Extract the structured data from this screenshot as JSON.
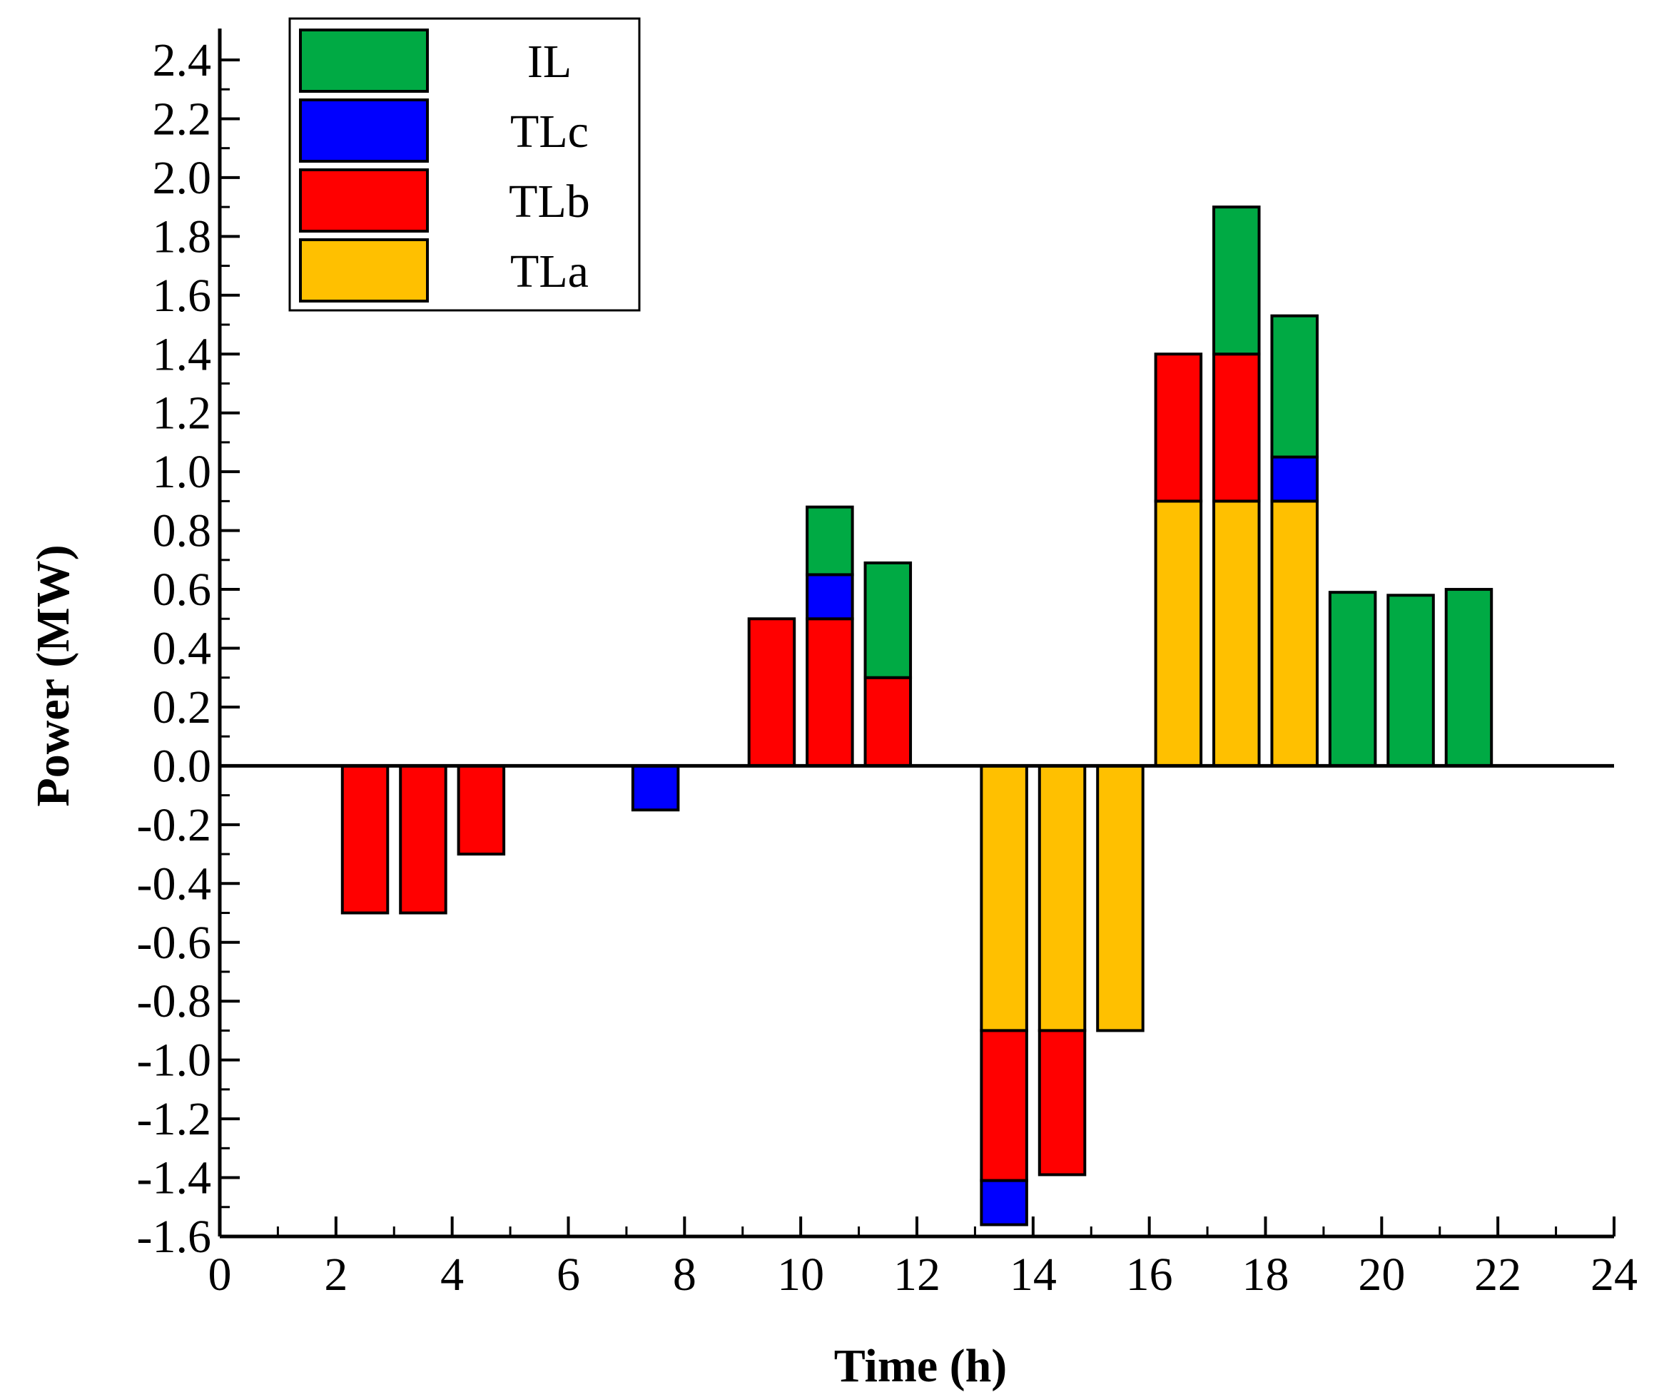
{
  "chart_data": {
    "type": "bar",
    "stacked": true,
    "title": "",
    "xlabel": "Time (h)",
    "ylabel": "Power (MW)",
    "xlim": [
      0,
      24
    ],
    "ylim": [
      -1.6,
      2.5
    ],
    "xticks": [
      0,
      2,
      4,
      6,
      8,
      10,
      12,
      14,
      16,
      18,
      20,
      22,
      24
    ],
    "yticks": [
      2.4,
      2.2,
      2.0,
      1.8,
      1.6,
      1.4,
      1.2,
      1.0,
      0.8,
      0.6,
      0.4,
      0.2,
      0.0,
      -0.2,
      -0.4,
      -0.6,
      -0.8,
      -1.0,
      -1.2,
      -1.4,
      -1.6
    ],
    "grid": false,
    "legend_position": "top-left",
    "legend_order": [
      "IL",
      "TLc",
      "TLb",
      "TLa"
    ],
    "stack_order": [
      "TLa",
      "TLb",
      "TLc",
      "IL"
    ],
    "colors": {
      "IL": "#00AA44",
      "TLc": "#0000FF",
      "TLb": "#FF0000",
      "TLa": "#FFC000"
    },
    "x": [
      2.5,
      3.5,
      4.5,
      7.5,
      9.5,
      10.5,
      11.5,
      13.5,
      14.5,
      15.5,
      16.5,
      17.5,
      18.5,
      19.5,
      20.5,
      21.5
    ],
    "series": [
      {
        "name": "TLa",
        "values": [
          0,
          0,
          0,
          0,
          0,
          0,
          0,
          -0.9,
          -0.9,
          -0.9,
          0.9,
          0.9,
          0.9,
          0,
          0,
          0
        ]
      },
      {
        "name": "TLb",
        "values": [
          -0.5,
          -0.5,
          -0.3,
          0,
          0.5,
          0.5,
          0.3,
          -0.51,
          -0.49,
          0,
          0.5,
          0.5,
          0,
          0,
          0,
          0
        ]
      },
      {
        "name": "TLc",
        "values": [
          0,
          0,
          0,
          -0.15,
          0,
          0.15,
          0,
          -0.15,
          0,
          0,
          0,
          0,
          0.15,
          0,
          0,
          0
        ]
      },
      {
        "name": "IL",
        "values": [
          0,
          0,
          0,
          0,
          0,
          0.23,
          0.39,
          0,
          0,
          0,
          0,
          0.5,
          0.48,
          0.59,
          0.58,
          0.6
        ]
      }
    ]
  }
}
